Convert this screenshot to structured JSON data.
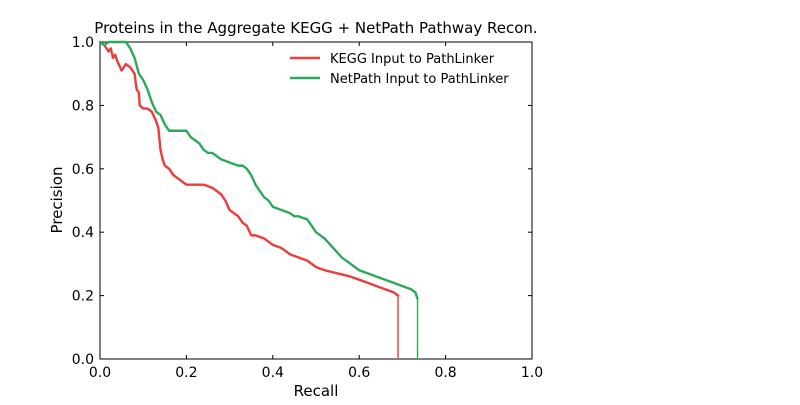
{
  "chart_data": {
    "type": "line",
    "title": "Proteins in the Aggregate KEGG + NetPath Pathway Recon.",
    "xlabel": "Recall",
    "ylabel": "Precision",
    "xlim": [
      0.0,
      1.0
    ],
    "ylim": [
      0.0,
      1.0
    ],
    "x_ticks": [
      "0.0",
      "0.2",
      "0.4",
      "0.6",
      "0.8",
      "1.0"
    ],
    "y_ticks": [
      "0.0",
      "0.2",
      "0.4",
      "0.6",
      "0.8",
      "1.0"
    ],
    "grid": false,
    "legend_position": "top-right",
    "series": [
      {
        "name": "KEGG Input to PathLinker",
        "color": "#ee3b3b",
        "x": [
          0.0,
          0.01,
          0.02,
          0.025,
          0.03,
          0.035,
          0.04,
          0.05,
          0.055,
          0.06,
          0.07,
          0.08,
          0.085,
          0.09,
          0.092,
          0.1,
          0.11,
          0.12,
          0.13,
          0.135,
          0.14,
          0.145,
          0.15,
          0.16,
          0.17,
          0.18,
          0.19,
          0.2,
          0.22,
          0.24,
          0.26,
          0.27,
          0.28,
          0.29,
          0.3,
          0.31,
          0.32,
          0.33,
          0.34,
          0.35,
          0.36,
          0.38,
          0.4,
          0.42,
          0.44,
          0.46,
          0.48,
          0.49,
          0.5,
          0.52,
          0.55,
          0.58,
          0.6,
          0.62,
          0.64,
          0.66,
          0.68,
          0.69,
          0.69
        ],
        "y": [
          1.0,
          0.99,
          0.97,
          0.98,
          0.95,
          0.96,
          0.94,
          0.91,
          0.92,
          0.93,
          0.92,
          0.9,
          0.85,
          0.84,
          0.8,
          0.79,
          0.79,
          0.78,
          0.75,
          0.73,
          0.66,
          0.63,
          0.61,
          0.6,
          0.58,
          0.57,
          0.56,
          0.55,
          0.55,
          0.55,
          0.54,
          0.53,
          0.52,
          0.5,
          0.47,
          0.46,
          0.45,
          0.43,
          0.42,
          0.39,
          0.39,
          0.38,
          0.36,
          0.35,
          0.33,
          0.32,
          0.31,
          0.3,
          0.29,
          0.28,
          0.27,
          0.26,
          0.25,
          0.24,
          0.23,
          0.22,
          0.21,
          0.2,
          0.0
        ]
      },
      {
        "name": "NetPath Input to PathLinker",
        "color": "#2ea85a",
        "x": [
          0.0,
          0.01,
          0.02,
          0.04,
          0.06,
          0.07,
          0.08,
          0.09,
          0.1,
          0.11,
          0.12,
          0.13,
          0.14,
          0.15,
          0.16,
          0.17,
          0.18,
          0.2,
          0.21,
          0.22,
          0.23,
          0.24,
          0.25,
          0.26,
          0.27,
          0.28,
          0.3,
          0.32,
          0.33,
          0.34,
          0.35,
          0.36,
          0.37,
          0.38,
          0.39,
          0.4,
          0.42,
          0.44,
          0.45,
          0.46,
          0.48,
          0.49,
          0.5,
          0.52,
          0.54,
          0.56,
          0.58,
          0.6,
          0.62,
          0.64,
          0.66,
          0.68,
          0.7,
          0.72,
          0.73,
          0.735,
          0.735
        ],
        "y": [
          1.0,
          0.99,
          1.0,
          1.0,
          1.0,
          0.98,
          0.95,
          0.9,
          0.88,
          0.85,
          0.81,
          0.78,
          0.77,
          0.74,
          0.72,
          0.72,
          0.72,
          0.72,
          0.7,
          0.69,
          0.68,
          0.66,
          0.65,
          0.65,
          0.64,
          0.63,
          0.62,
          0.61,
          0.61,
          0.6,
          0.58,
          0.55,
          0.53,
          0.51,
          0.5,
          0.48,
          0.47,
          0.46,
          0.45,
          0.45,
          0.44,
          0.42,
          0.4,
          0.38,
          0.35,
          0.32,
          0.3,
          0.28,
          0.27,
          0.26,
          0.25,
          0.24,
          0.23,
          0.22,
          0.21,
          0.19,
          0.0
        ]
      }
    ]
  }
}
